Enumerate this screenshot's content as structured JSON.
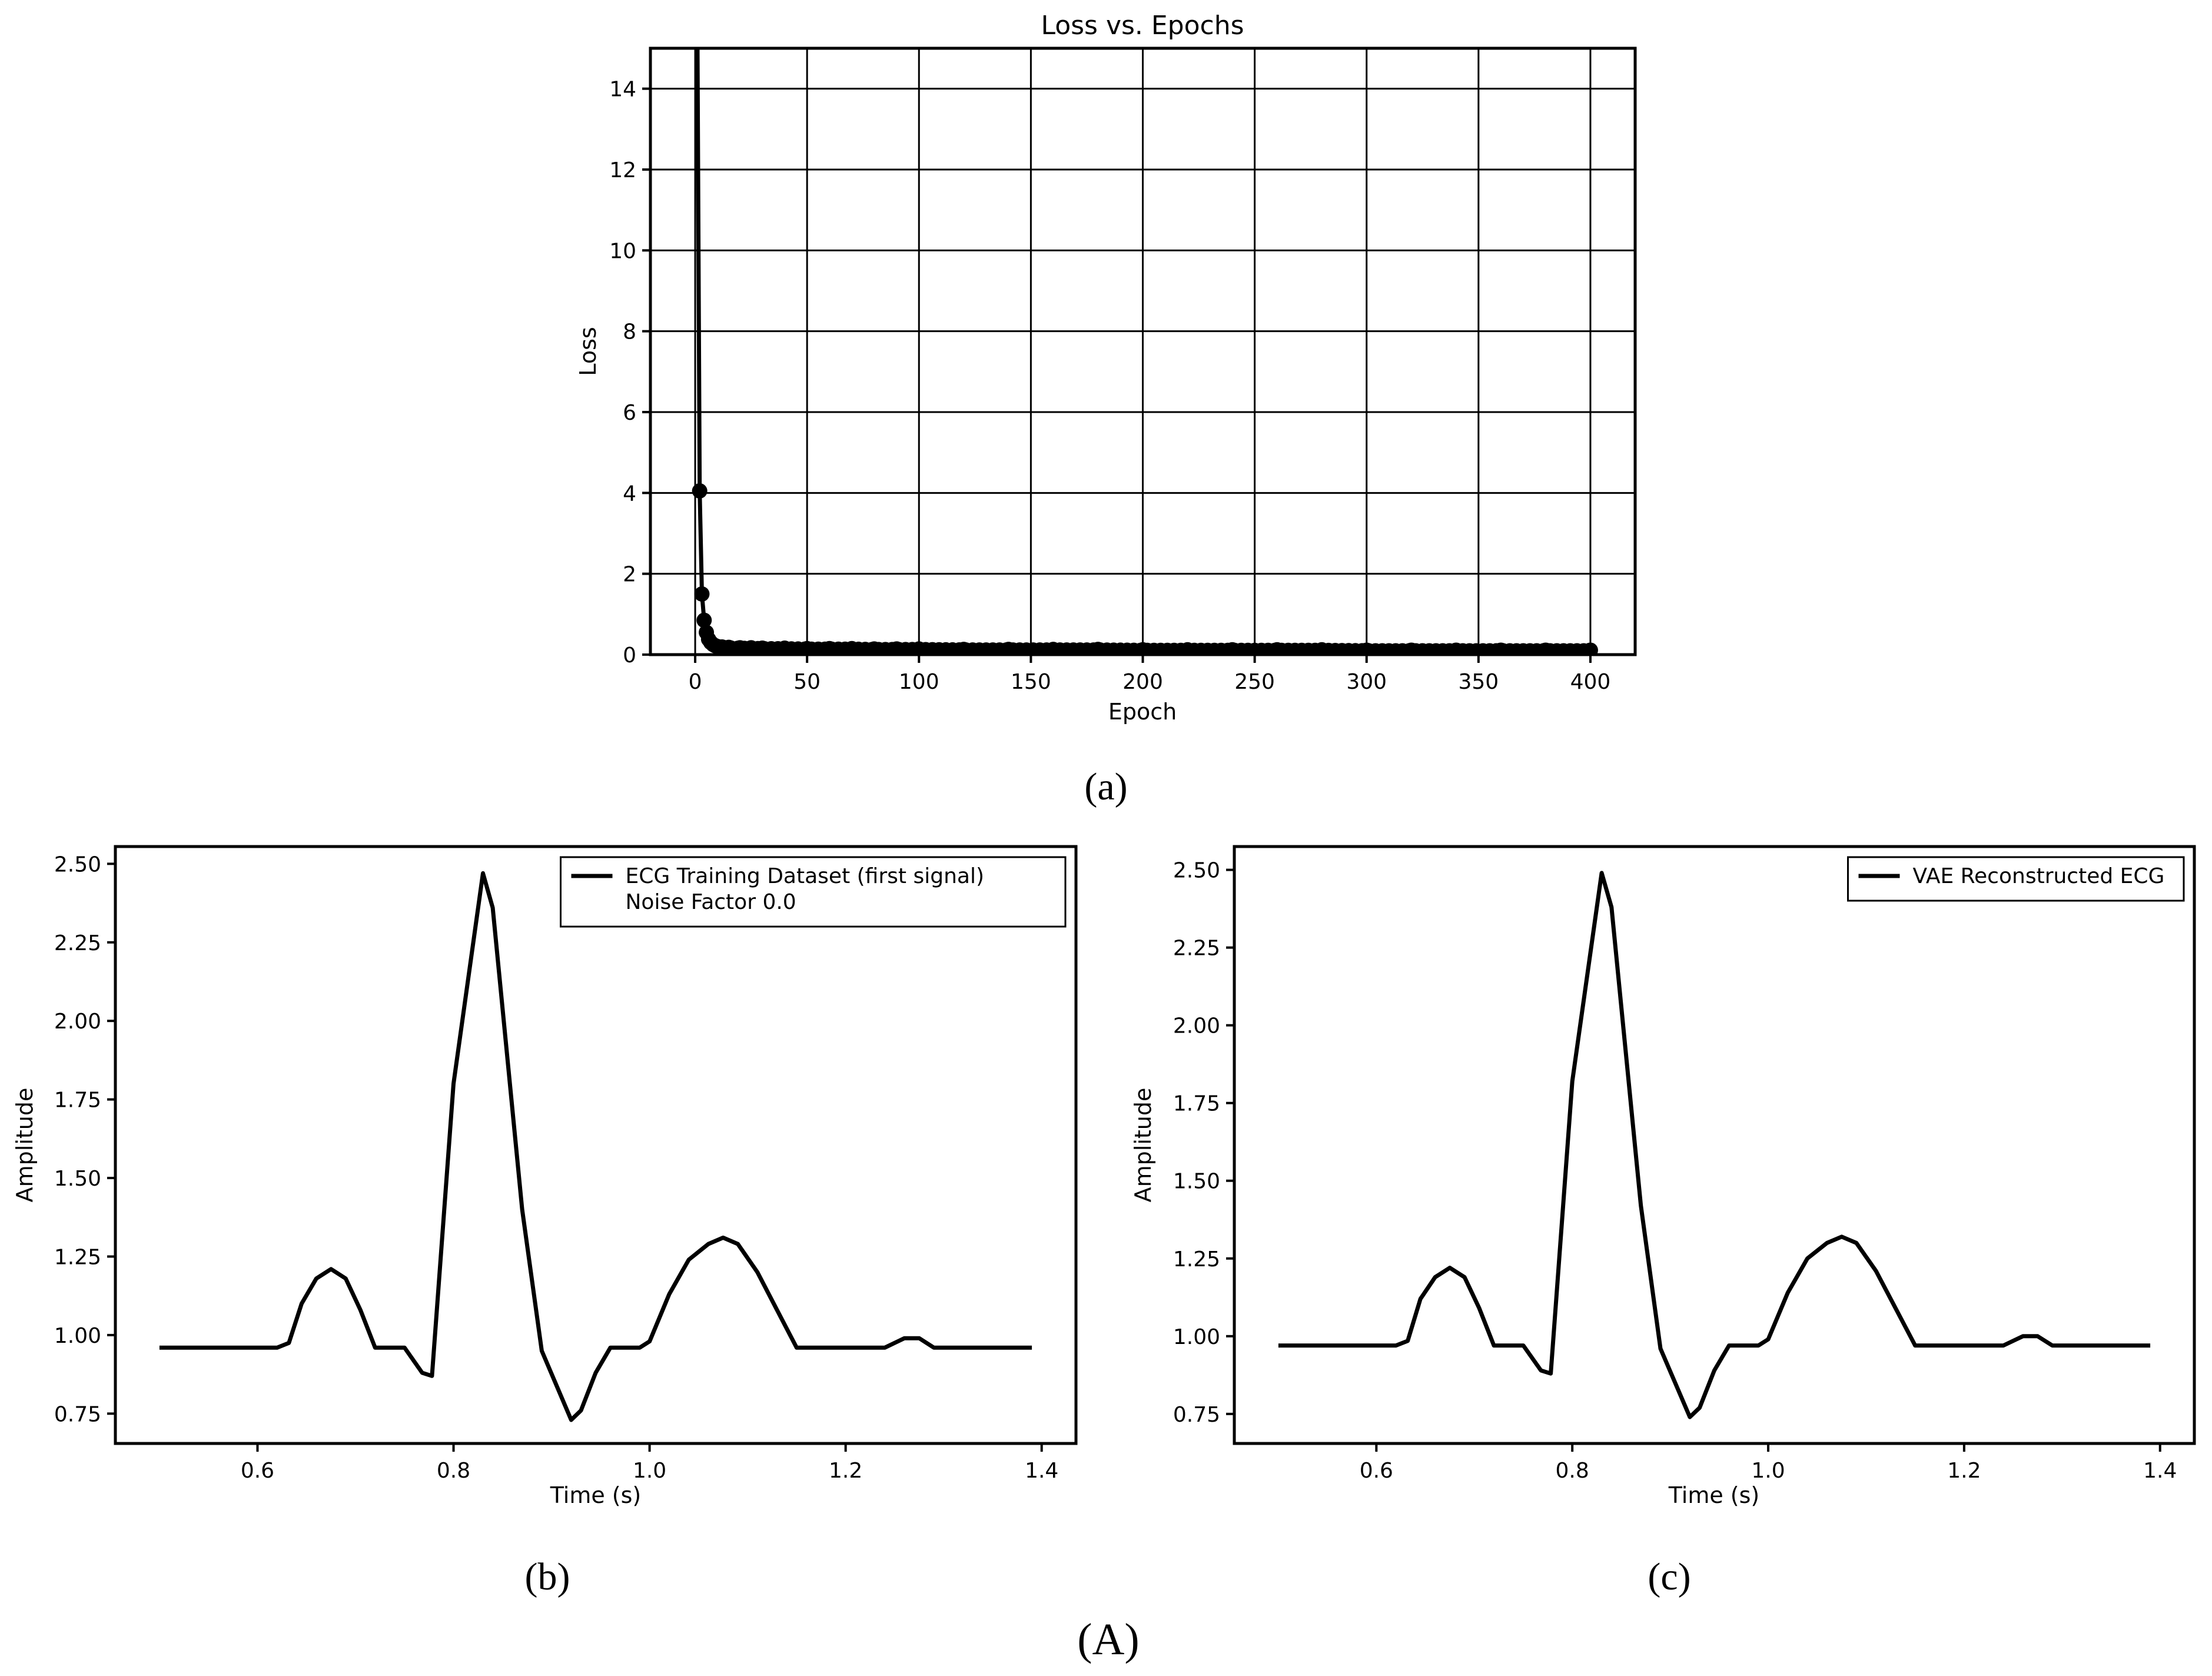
{
  "figure_labels": {
    "a": "(a)",
    "b": "(b)",
    "c": "(c)",
    "main": "(A)"
  },
  "chart_data": [
    {
      "id": "a",
      "type": "line",
      "title": "Loss vs. Epochs",
      "xlabel": "Epoch",
      "ylabel": "Loss",
      "xlim": [
        -20,
        420
      ],
      "ylim": [
        0,
        15
      ],
      "xticks": [
        0,
        50,
        100,
        150,
        200,
        250,
        300,
        350,
        400
      ],
      "yticks": [
        0,
        2,
        4,
        6,
        8,
        10,
        12,
        14
      ],
      "grid": true,
      "markers": true,
      "color": "#000000",
      "series": [
        {
          "x": [
            1,
            2,
            3,
            4,
            5,
            6,
            7,
            8,
            9,
            10,
            12,
            15,
            20,
            25,
            30,
            40,
            50,
            60,
            70,
            80,
            90,
            100,
            120,
            140,
            160,
            180,
            200,
            220,
            240,
            260,
            280,
            300,
            320,
            340,
            360,
            380,
            400
          ],
          "y": [
            15.5,
            4.05,
            1.5,
            0.85,
            0.55,
            0.38,
            0.3,
            0.25,
            0.22,
            0.2,
            0.19,
            0.18,
            0.17,
            0.17,
            0.16,
            0.16,
            0.15,
            0.15,
            0.15,
            0.14,
            0.14,
            0.14,
            0.13,
            0.13,
            0.13,
            0.13,
            0.12,
            0.12,
            0.12,
            0.12,
            0.12,
            0.11,
            0.11,
            0.11,
            0.11,
            0.11,
            0.11
          ]
        }
      ]
    },
    {
      "id": "b",
      "type": "line",
      "xlabel": "Time (s)",
      "ylabel": "Amplitude",
      "xlim": [
        0.455,
        1.435
      ],
      "ylim": [
        0.655,
        2.555
      ],
      "xticks": [
        0.6,
        0.8,
        1.0,
        1.2,
        1.4
      ],
      "xtick_labels": [
        "0.6",
        "0.8",
        "1.0",
        "1.2",
        "1.4"
      ],
      "yticks": [
        0.75,
        1.0,
        1.25,
        1.5,
        1.75,
        2.0,
        2.25,
        2.5
      ],
      "ytick_labels": [
        "0.75",
        "1.00",
        "1.25",
        "1.50",
        "1.75",
        "2.00",
        "2.25",
        "2.50"
      ],
      "grid": false,
      "legend": {
        "position": "top-right",
        "lines": [
          "ECG Training Dataset (first signal)",
          "Noise Factor 0.0"
        ]
      },
      "series": [
        {
          "name": "ECG Training Dataset (first signal)\nNoise Factor 0.0",
          "x": [
            0.5,
            0.62,
            0.632,
            0.645,
            0.66,
            0.675,
            0.69,
            0.705,
            0.72,
            0.75,
            0.768,
            0.778,
            0.8,
            0.83,
            0.84,
            0.87,
            0.89,
            0.92,
            0.93,
            0.945,
            0.96,
            0.99,
            1.0,
            1.02,
            1.04,
            1.06,
            1.075,
            1.09,
            1.11,
            1.13,
            1.15,
            1.24,
            1.26,
            1.275,
            1.29,
            1.39
          ],
          "y": [
            0.96,
            0.96,
            0.975,
            1.1,
            1.18,
            1.21,
            1.18,
            1.08,
            0.96,
            0.96,
            0.88,
            0.87,
            1.8,
            2.47,
            2.36,
            1.4,
            0.95,
            0.73,
            0.76,
            0.88,
            0.96,
            0.96,
            0.98,
            1.13,
            1.24,
            1.29,
            1.31,
            1.29,
            1.2,
            1.08,
            0.96,
            0.96,
            0.99,
            0.99,
            0.96,
            0.96
          ]
        }
      ]
    },
    {
      "id": "c",
      "type": "line",
      "xlabel": "Time (s)",
      "ylabel": "Amplitude",
      "xlim": [
        0.455,
        1.435
      ],
      "ylim": [
        0.655,
        2.575
      ],
      "xticks": [
        0.6,
        0.8,
        1.0,
        1.2,
        1.4
      ],
      "xtick_labels": [
        "0.6",
        "0.8",
        "1.0",
        "1.2",
        "1.4"
      ],
      "yticks": [
        0.75,
        1.0,
        1.25,
        1.5,
        1.75,
        2.0,
        2.25,
        2.5
      ],
      "ytick_labels": [
        "0.75",
        "1.00",
        "1.25",
        "1.50",
        "1.75",
        "2.00",
        "2.25",
        "2.50"
      ],
      "grid": false,
      "legend": {
        "position": "top-right",
        "lines": [
          "VAE Reconstructed ECG"
        ]
      },
      "series": [
        {
          "name": "VAE Reconstructed ECG",
          "x": [
            0.5,
            0.62,
            0.632,
            0.645,
            0.66,
            0.675,
            0.69,
            0.705,
            0.72,
            0.75,
            0.768,
            0.778,
            0.8,
            0.83,
            0.84,
            0.87,
            0.89,
            0.92,
            0.93,
            0.945,
            0.96,
            0.99,
            1.0,
            1.02,
            1.04,
            1.06,
            1.075,
            1.09,
            1.11,
            1.13,
            1.15,
            1.24,
            1.26,
            1.275,
            1.29,
            1.39
          ],
          "y": [
            0.97,
            0.97,
            0.985,
            1.12,
            1.19,
            1.22,
            1.19,
            1.09,
            0.97,
            0.97,
            0.89,
            0.88,
            1.82,
            2.49,
            2.38,
            1.42,
            0.96,
            0.74,
            0.77,
            0.89,
            0.97,
            0.97,
            0.99,
            1.14,
            1.25,
            1.3,
            1.32,
            1.3,
            1.21,
            1.09,
            0.97,
            0.97,
            1.0,
            1.0,
            0.97,
            0.97
          ]
        }
      ]
    }
  ]
}
